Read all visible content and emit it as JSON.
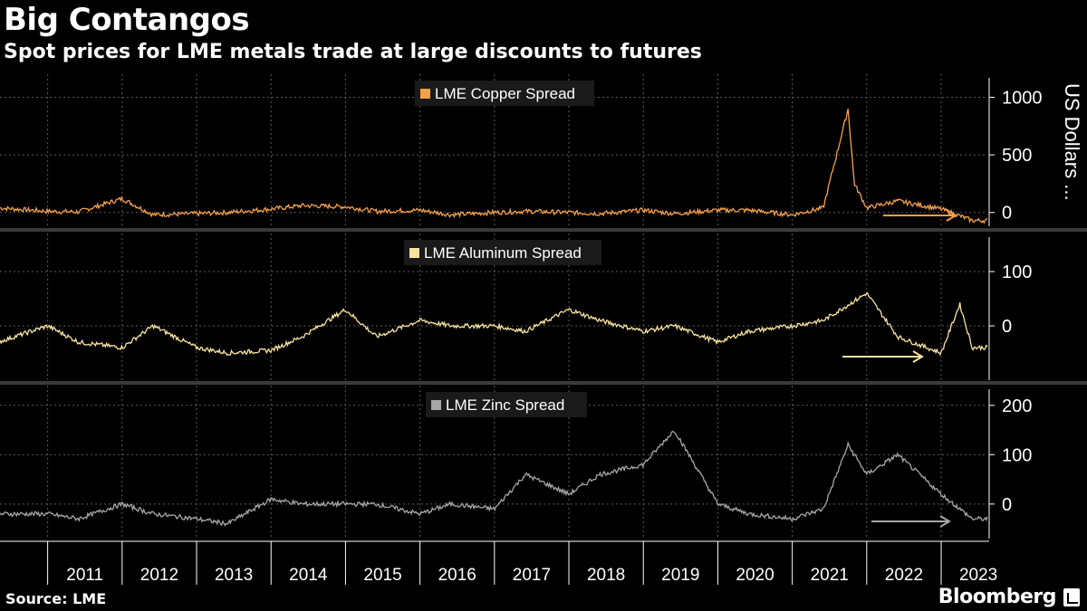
{
  "header": {
    "title": "Big Contangos",
    "subtitle": "Spot prices for LME metals trade at large discounts to futures"
  },
  "footer": {
    "source": "Source: LME",
    "brand": "Bloomberg"
  },
  "colors": {
    "background": "#000000",
    "copper": "#f5a04a",
    "aluminum": "#f8e3a0",
    "zinc": "#a6a6a6",
    "grid": "#5a5a5a"
  },
  "chart_data": [
    {
      "type": "line",
      "series": [
        {
          "name": "LME Copper Spread",
          "x": [
            "2010-05",
            "2011-01",
            "2011-06",
            "2012-01",
            "2012-06",
            "2013-01",
            "2013-06",
            "2014-01",
            "2014-06",
            "2015-01",
            "2015-06",
            "2016-01",
            "2016-06",
            "2017-01",
            "2017-06",
            "2018-01",
            "2018-06",
            "2019-01",
            "2019-06",
            "2020-01",
            "2020-06",
            "2021-01",
            "2021-06",
            "2021-10",
            "2021-11",
            "2022-01",
            "2022-06",
            "2023-01",
            "2023-06"
          ],
          "values": [
            40,
            10,
            5,
            120,
            -20,
            -10,
            0,
            30,
            60,
            50,
            10,
            20,
            -20,
            0,
            10,
            0,
            -10,
            20,
            -10,
            20,
            20,
            -20,
            40,
            900,
            250,
            40,
            100,
            30,
            -70
          ]
        }
      ],
      "ylim": [
        -120,
        1200
      ],
      "yticks": [
        0,
        500,
        1000
      ],
      "ylabel": "US Dollars ...",
      "legend": "top-center",
      "grid": true
    },
    {
      "type": "line",
      "series": [
        {
          "name": "LME Aluminum Spread",
          "x": [
            "2010-05",
            "2011-01",
            "2011-06",
            "2012-01",
            "2012-06",
            "2013-01",
            "2013-06",
            "2014-01",
            "2014-06",
            "2015-01",
            "2015-06",
            "2016-01",
            "2016-06",
            "2017-01",
            "2017-06",
            "2018-01",
            "2018-06",
            "2019-01",
            "2019-06",
            "2020-01",
            "2020-06",
            "2021-01",
            "2021-06",
            "2022-01",
            "2022-06",
            "2023-01",
            "2023-04",
            "2023-06"
          ],
          "values": [
            -30,
            0,
            -30,
            -40,
            0,
            -40,
            -50,
            -45,
            -20,
            30,
            -20,
            10,
            0,
            0,
            -10,
            30,
            10,
            -10,
            0,
            -30,
            -10,
            0,
            10,
            60,
            -20,
            -50,
            40,
            -40
          ]
        }
      ],
      "ylim": [
        -100,
        170
      ],
      "yticks": [
        0,
        100
      ],
      "legend": "top-center",
      "grid": true
    },
    {
      "type": "line",
      "series": [
        {
          "name": "LME Zinc Spread",
          "x": [
            "2010-05",
            "2011-01",
            "2011-06",
            "2012-01",
            "2012-06",
            "2013-01",
            "2013-06",
            "2014-01",
            "2014-06",
            "2015-01",
            "2015-06",
            "2016-01",
            "2016-06",
            "2017-01",
            "2017-06",
            "2018-01",
            "2018-06",
            "2019-01",
            "2019-06",
            "2020-01",
            "2020-06",
            "2021-01",
            "2021-06",
            "2021-10",
            "2022-01",
            "2022-06",
            "2023-01",
            "2023-06"
          ],
          "values": [
            -20,
            -20,
            -30,
            0,
            -20,
            -30,
            -40,
            10,
            0,
            0,
            0,
            -20,
            0,
            -10,
            60,
            20,
            60,
            80,
            150,
            0,
            -20,
            -30,
            -10,
            120,
            60,
            100,
            20,
            -30
          ]
        }
      ],
      "x_tick_labels": [
        "2011",
        "2012",
        "2013",
        "2014",
        "2015",
        "2016",
        "2017",
        "2018",
        "2019",
        "2020",
        "2021",
        "2022",
        "2023"
      ],
      "ylim": [
        -70,
        240
      ],
      "yticks": [
        0,
        100,
        200
      ],
      "legend": "top-center",
      "grid": true
    }
  ]
}
